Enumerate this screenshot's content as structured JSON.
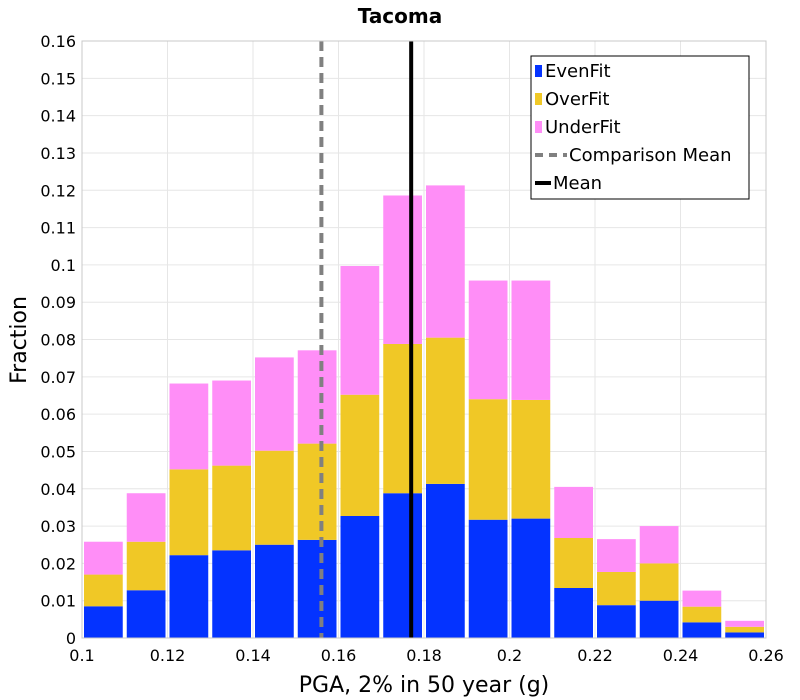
{
  "chart_data": {
    "type": "bar",
    "stacked": true,
    "title": "Tacoma",
    "xlabel": "PGA, 2% in 50 year (g)",
    "ylabel": "Fraction",
    "xlim": [
      0.1,
      0.26
    ],
    "ylim": [
      0,
      0.16
    ],
    "bin_width": 0.01,
    "bin_starts": [
      0.1,
      0.11,
      0.12,
      0.13,
      0.14,
      0.15,
      0.16,
      0.17,
      0.18,
      0.19,
      0.2,
      0.21,
      0.22,
      0.23,
      0.24,
      0.25
    ],
    "series": [
      {
        "name": "EvenFit",
        "color": "#0433ff",
        "values": [
          0.0085,
          0.0128,
          0.0222,
          0.0235,
          0.025,
          0.0263,
          0.0327,
          0.0388,
          0.0413,
          0.0317,
          0.032,
          0.0134,
          0.0088,
          0.01,
          0.0042,
          0.0015
        ]
      },
      {
        "name": "OverFit",
        "color": "#f0c826",
        "values": [
          0.0085,
          0.013,
          0.023,
          0.0227,
          0.0252,
          0.0258,
          0.0325,
          0.04,
          0.0392,
          0.0323,
          0.0318,
          0.0134,
          0.0089,
          0.01,
          0.0042,
          0.0015
        ]
      },
      {
        "name": "UnderFit",
        "color": "#ff8ef7",
        "values": [
          0.0088,
          0.013,
          0.023,
          0.0228,
          0.025,
          0.025,
          0.0345,
          0.0398,
          0.0408,
          0.0318,
          0.032,
          0.0137,
          0.0088,
          0.01,
          0.0043,
          0.0016
        ]
      }
    ],
    "reference_lines": [
      {
        "name": "Comparison Mean",
        "x": 0.156,
        "color": "#808080",
        "style": "dashed"
      },
      {
        "name": "Mean",
        "x": 0.177,
        "color": "#000000",
        "style": "solid"
      }
    ],
    "legend_position": "top-right",
    "legend_entries": [
      "EvenFit",
      "OverFit",
      "UnderFit",
      "Comparison Mean",
      "Mean"
    ],
    "x_ticks": [
      "0.1",
      "0.12",
      "0.14",
      "0.16",
      "0.18",
      "0.2",
      "0.22",
      "0.24",
      "0.26"
    ],
    "x_tick_values": [
      0.1,
      0.12,
      0.14,
      0.16,
      0.18,
      0.2,
      0.22,
      0.24,
      0.26
    ],
    "y_ticks": [
      "0",
      "0.01",
      "0.02",
      "0.03",
      "0.04",
      "0.05",
      "0.06",
      "0.07",
      "0.08",
      "0.09",
      "0.1",
      "0.11",
      "0.12",
      "0.13",
      "0.14",
      "0.15",
      "0.16"
    ],
    "y_tick_values": [
      0,
      0.01,
      0.02,
      0.03,
      0.04,
      0.05,
      0.06,
      0.07,
      0.08,
      0.09,
      0.1,
      0.11,
      0.12,
      0.13,
      0.14,
      0.15,
      0.16
    ],
    "grid": true
  }
}
